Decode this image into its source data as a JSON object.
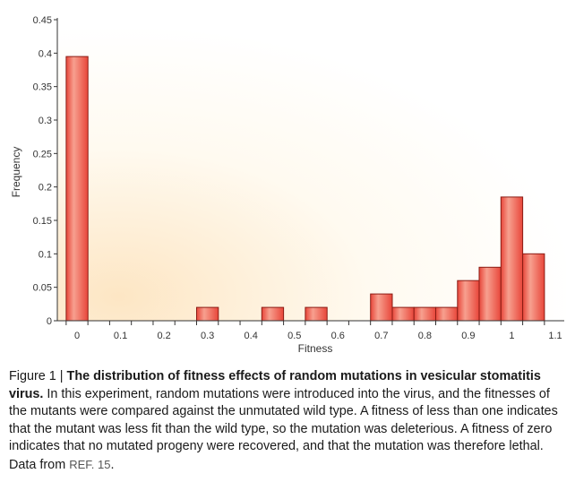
{
  "chart_data": {
    "type": "bar",
    "title": "",
    "xlabel": "Fitness",
    "ylabel": "Frequency",
    "xlim": [
      -0.02,
      1.12
    ],
    "ylim": [
      0,
      0.45
    ],
    "x_ticks": [
      0,
      0.1,
      0.2,
      0.3,
      0.4,
      0.5,
      0.6,
      0.7,
      0.8,
      0.9,
      1,
      1.1
    ],
    "x_tick_labels": [
      "0",
      "0.1",
      "0.2",
      "0.3",
      "0.4",
      "0.5",
      "0.6",
      "0.7",
      "0.8",
      "0.9",
      "1",
      "1.1"
    ],
    "y_ticks": [
      0,
      0.05,
      0.1,
      0.15,
      0.2,
      0.25,
      0.3,
      0.35,
      0.4,
      0.45
    ],
    "y_tick_labels": [
      "0",
      "0.05",
      "0.1",
      "0.15",
      "0.2",
      "0.25",
      "0.3",
      "0.35",
      "0.4",
      "0.45"
    ],
    "bar_width": 0.05,
    "x": [
      0,
      0.3,
      0.45,
      0.55,
      0.7,
      0.75,
      0.8,
      0.85,
      0.9,
      0.95,
      1.0,
      1.05
    ],
    "values": [
      0.395,
      0.02,
      0.02,
      0.02,
      0.04,
      0.02,
      0.02,
      0.02,
      0.06,
      0.08,
      0.185,
      0.1
    ],
    "grid": false,
    "colors": {
      "bar_fill": "#e8463a",
      "bar_highlight": "#f7a08f",
      "bar_stroke": "#8a1c14",
      "background_warm": "#fde6c4",
      "background_light": "#fffaf0",
      "axis": "#333333"
    }
  },
  "caption": {
    "figure_label": "Figure 1 | ",
    "title": "The distribution of fitness effects of random mutations in vesicular stomatitis virus.",
    "body": " In this experiment, random mutations were introduced into the virus, and the fitnesses of the mutants were compared against the unmutated wild type. A fitness of less than one indicates that the mutant was less fit than the wild type, so the mutation was deleterious. A fitness of zero indicates that no mutated progeny were recovered, and that the mutation was therefore lethal. Data from ",
    "ref": "REF. 15",
    "end": "."
  }
}
